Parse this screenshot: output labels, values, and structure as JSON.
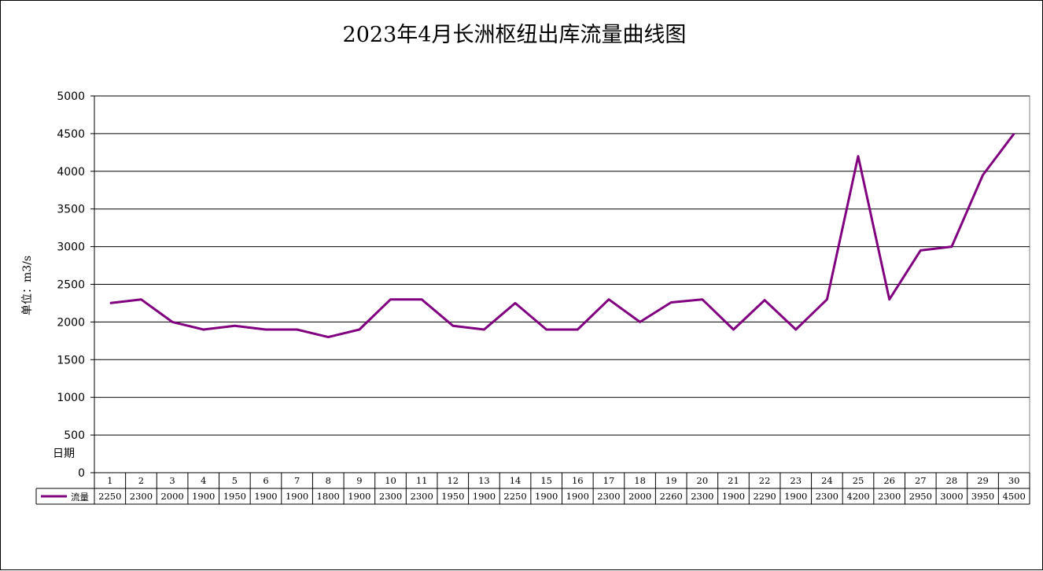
{
  "chart_data": {
    "type": "line",
    "title": "2023年4月长洲枢纽出库流量曲线图",
    "ylabel": "单位：m3/s",
    "xlabel": "日期",
    "ylim": [
      0,
      5000
    ],
    "yticks": [
      0,
      500,
      1000,
      1500,
      2000,
      2500,
      3000,
      3500,
      4000,
      4500,
      5000
    ],
    "grid": true,
    "legend_placement": "data-table",
    "categories": [
      "1",
      "2",
      "3",
      "4",
      "5",
      "6",
      "7",
      "8",
      "9",
      "10",
      "11",
      "12",
      "13",
      "14",
      "15",
      "16",
      "17",
      "18",
      "19",
      "20",
      "21",
      "22",
      "23",
      "24",
      "25",
      "26",
      "27",
      "28",
      "29",
      "30"
    ],
    "series": [
      {
        "name": "流量",
        "color": "#800080",
        "values": [
          2250,
          2300,
          2000,
          1900,
          1950,
          1900,
          1900,
          1800,
          1900,
          2300,
          2300,
          1950,
          1900,
          2250,
          1900,
          1900,
          2300,
          2000,
          2260,
          2300,
          1900,
          2290,
          1900,
          2300,
          4200,
          2300,
          2950,
          3000,
          3950,
          4500
        ]
      }
    ]
  }
}
